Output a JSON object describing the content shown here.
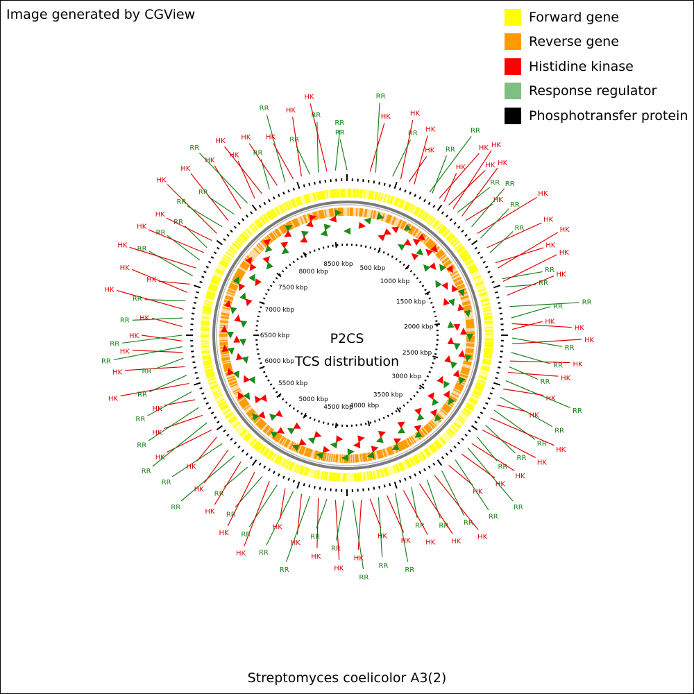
{
  "credit": "Image generated by CGView",
  "center_title": "P2CS",
  "center_subtitle": "TCS distribution",
  "organism": "Streptomyces coelicolor A3(2)",
  "colors": {
    "forward_gene": "#ffff00",
    "reverse_gene": "#ff9a00",
    "histidine_kinase": "#ff0000",
    "response_regulator": "#7fbf7f",
    "phosphotransfer_protein": "#000000",
    "backbone": "#7a7a7a",
    "label_hk": "#e00000",
    "label_rr": "#1a801a",
    "marker_rr": "#1a8c1a"
  },
  "legend": [
    {
      "label": "Forward gene",
      "color": "#ffff00"
    },
    {
      "label": "Reverse gene",
      "color": "#ff9a00"
    },
    {
      "label": "Histidine kinase",
      "color": "#ff0000"
    },
    {
      "label": "Response regulator",
      "color": "#7fbf7f"
    },
    {
      "label": "Phosphotransfer protein",
      "color": "#000000"
    }
  ],
  "genome": {
    "length_kbp": 8667,
    "scale_labels": [
      {
        "kbp": 500,
        "text": "500 kbp"
      },
      {
        "kbp": 1000,
        "text": "1000 kbp"
      },
      {
        "kbp": 1500,
        "text": "1500 kbp"
      },
      {
        "kbp": 2000,
        "text": "2000 kbp"
      },
      {
        "kbp": 2500,
        "text": "2500 kbp"
      },
      {
        "kbp": 3000,
        "text": "3000 kbp"
      },
      {
        "kbp": 3500,
        "text": "3500 kbp"
      },
      {
        "kbp": 4000,
        "text": "4000 kbp"
      },
      {
        "kbp": 4500,
        "text": "4500 kbp"
      },
      {
        "kbp": 5000,
        "text": "5000 kbp"
      },
      {
        "kbp": 5500,
        "text": "5500 kbp"
      },
      {
        "kbp": 6000,
        "text": "6000 kbp"
      },
      {
        "kbp": 6500,
        "text": "6500 kbp"
      },
      {
        "kbp": 7000,
        "text": "7000 kbp"
      },
      {
        "kbp": 7500,
        "text": "7500 kbp"
      },
      {
        "kbp": 8000,
        "text": "8000 kbp"
      },
      {
        "kbp": 8500,
        "text": "8500 kbp"
      }
    ],
    "features": [
      {
        "deg": 0,
        "label": "RR"
      },
      {
        "deg": 8,
        "label": "HK"
      },
      {
        "deg": 10,
        "label": "RR"
      },
      {
        "deg": 16,
        "label": "RR"
      },
      {
        "deg": 19,
        "label": "HK"
      },
      {
        "deg": 22,
        "label": "HK"
      },
      {
        "deg": 24,
        "label": "HK"
      },
      {
        "deg": 30,
        "label": "RR"
      },
      {
        "deg": 31,
        "label": "RR"
      },
      {
        "deg": 34,
        "label": "HK"
      },
      {
        "deg": 36,
        "label": "HK"
      },
      {
        "deg": 38,
        "label": "HK"
      },
      {
        "deg": 40,
        "label": "HK"
      },
      {
        "deg": 42,
        "label": "RR"
      },
      {
        "deg": 44,
        "label": "HK"
      },
      {
        "deg": 46,
        "label": "HK"
      },
      {
        "deg": 49,
        "label": "RR"
      },
      {
        "deg": 52,
        "label": "HK"
      },
      {
        "deg": 54,
        "label": "RR"
      },
      {
        "deg": 58,
        "label": "HK"
      },
      {
        "deg": 60,
        "label": "RR"
      },
      {
        "deg": 64,
        "label": "HK"
      },
      {
        "deg": 66,
        "label": "HK"
      },
      {
        "deg": 70,
        "label": "RR"
      },
      {
        "deg": 71,
        "label": "HK"
      },
      {
        "deg": 73,
        "label": "RR"
      },
      {
        "deg": 76,
        "label": "HK"
      },
      {
        "deg": 80,
        "label": "RR"
      },
      {
        "deg": 84,
        "label": "RR"
      },
      {
        "deg": 86,
        "label": "HK"
      },
      {
        "deg": 88,
        "label": "HK"
      },
      {
        "deg": 91,
        "label": "RR"
      },
      {
        "deg": 93,
        "label": "HK"
      },
      {
        "deg": 96,
        "label": "RR"
      },
      {
        "deg": 99,
        "label": "HK"
      },
      {
        "deg": 101,
        "label": "RR"
      },
      {
        "deg": 103,
        "label": "HK"
      },
      {
        "deg": 106,
        "label": "RR"
      },
      {
        "deg": 109,
        "label": "HK"
      },
      {
        "deg": 112,
        "label": "RR"
      },
      {
        "deg": 115,
        "label": "HK"
      },
      {
        "deg": 117,
        "label": "RR"
      },
      {
        "deg": 120,
        "label": "HK"
      },
      {
        "deg": 123,
        "label": "RR"
      },
      {
        "deg": 125,
        "label": "HK"
      },
      {
        "deg": 128,
        "label": "RR"
      },
      {
        "deg": 131,
        "label": "HK"
      },
      {
        "deg": 133,
        "label": "RR"
      },
      {
        "deg": 136,
        "label": "HK"
      },
      {
        "deg": 139,
        "label": "RR"
      },
      {
        "deg": 142,
        "label": "HK"
      },
      {
        "deg": 145,
        "label": "RR"
      },
      {
        "deg": 148,
        "label": "HK"
      },
      {
        "deg": 151,
        "label": "RR"
      },
      {
        "deg": 154,
        "label": "HK"
      },
      {
        "deg": 157,
        "label": "RR"
      },
      {
        "deg": 160,
        "label": "HK"
      },
      {
        "deg": 163,
        "label": "RR"
      },
      {
        "deg": 166,
        "label": "HK"
      },
      {
        "deg": 169,
        "label": "RR"
      },
      {
        "deg": 172,
        "label": "HK"
      },
      {
        "deg": 175,
        "label": "HK"
      },
      {
        "deg": 178,
        "label": "RR"
      },
      {
        "deg": 181,
        "label": "RR"
      },
      {
        "deg": 184,
        "label": "HK"
      },
      {
        "deg": 187,
        "label": "RR"
      },
      {
        "deg": 190,
        "label": "HK"
      },
      {
        "deg": 193,
        "label": "RR"
      },
      {
        "deg": 196,
        "label": "HK"
      },
      {
        "deg": 199,
        "label": "RR"
      },
      {
        "deg": 202,
        "label": "HK"
      },
      {
        "deg": 205,
        "label": "RR"
      },
      {
        "deg": 208,
        "label": "HK"
      },
      {
        "deg": 211,
        "label": "RR"
      },
      {
        "deg": 214,
        "label": "HK"
      },
      {
        "deg": 217,
        "label": "RR"
      },
      {
        "deg": 220,
        "label": "HK"
      },
      {
        "deg": 223,
        "label": "RR"
      },
      {
        "deg": 226,
        "label": "HK"
      },
      {
        "deg": 229,
        "label": "RR"
      },
      {
        "deg": 232,
        "label": "HK"
      },
      {
        "deg": 235,
        "label": "HK"
      },
      {
        "deg": 238,
        "label": "RR"
      },
      {
        "deg": 241,
        "label": "HK"
      },
      {
        "deg": 244,
        "label": "RR"
      },
      {
        "deg": 247,
        "label": "HK"
      },
      {
        "deg": 250,
        "label": "RR"
      },
      {
        "deg": 253,
        "label": "HK"
      },
      {
        "deg": 256,
        "label": "RR"
      },
      {
        "deg": 259,
        "label": "HK"
      },
      {
        "deg": 262,
        "label": "RR"
      },
      {
        "deg": 264,
        "label": "HK"
      },
      {
        "deg": 266,
        "label": "RR"
      },
      {
        "deg": 268,
        "label": "HK"
      },
      {
        "deg": 270,
        "label": "RR"
      },
      {
        "deg": 273,
        "label": "HK"
      },
      {
        "deg": 276,
        "label": "RR"
      },
      {
        "deg": 279,
        "label": "HK"
      },
      {
        "deg": 282,
        "label": "RR"
      },
      {
        "deg": 285,
        "label": "HK"
      },
      {
        "deg": 288,
        "label": "HK"
      },
      {
        "deg": 291,
        "label": "RR"
      },
      {
        "deg": 294,
        "label": "HK"
      },
      {
        "deg": 297,
        "label": "RR"
      },
      {
        "deg": 300,
        "label": "HK"
      },
      {
        "deg": 302,
        "label": "RR"
      },
      {
        "deg": 305,
        "label": "HK"
      },
      {
        "deg": 308,
        "label": "HK"
      },
      {
        "deg": 311,
        "label": "RR"
      },
      {
        "deg": 314,
        "label": "HK"
      },
      {
        "deg": 317,
        "label": "RR"
      },
      {
        "deg": 320,
        "label": "HK"
      },
      {
        "deg": 323,
        "label": "RR"
      },
      {
        "deg": 326,
        "label": "HK"
      },
      {
        "deg": 329,
        "label": "HK"
      },
      {
        "deg": 332,
        "label": "RR"
      },
      {
        "deg": 335,
        "label": "HK"
      },
      {
        "deg": 338,
        "label": "RR"
      },
      {
        "deg": 341,
        "label": "HK"
      },
      {
        "deg": 344,
        "label": "HK"
      },
      {
        "deg": 347,
        "label": "RR"
      },
      {
        "deg": 350,
        "label": "RR"
      },
      {
        "deg": 353,
        "label": "HK"
      },
      {
        "deg": 356,
        "label": "RR"
      }
    ]
  }
}
